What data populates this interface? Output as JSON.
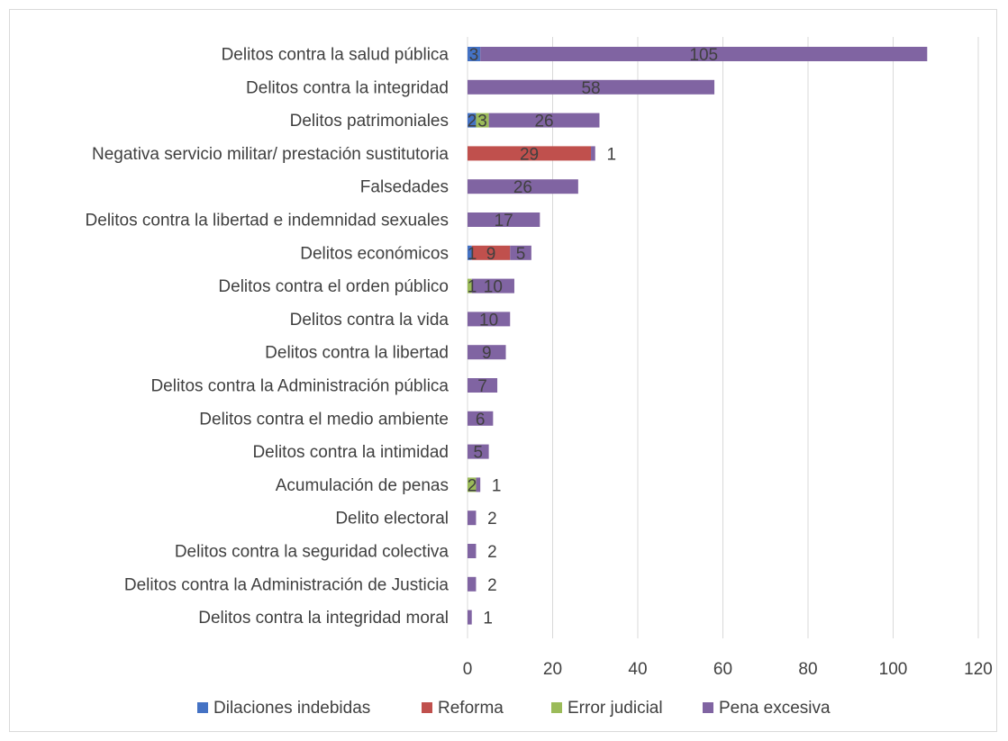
{
  "chart_data": {
    "type": "bar",
    "orientation": "horizontal",
    "stacked": true,
    "categories": [
      "Delitos contra la salud pública",
      "Delitos contra la integridad",
      "Delitos patrimoniales",
      "Negativa servicio militar/ prestación sustitutoria",
      "Falsedades",
      "Delitos contra la libertad e indemnidad sexuales",
      "Delitos económicos",
      "Delitos contra el orden público",
      "Delitos contra la vida",
      "Delitos contra la libertad",
      "Delitos contra la Administración pública",
      "Delitos contra el medio ambiente",
      "Delitos contra la intimidad",
      "Acumulación de penas",
      "Delito electoral",
      "Delitos contra la seguridad colectiva",
      "Delitos contra la Administración de Justicia",
      "Delitos contra la integridad moral"
    ],
    "series": [
      {
        "name": "Dilaciones indebidas",
        "color": "#4472c4",
        "values": [
          3,
          0,
          2,
          0,
          0,
          0,
          1,
          0,
          0,
          0,
          0,
          0,
          0,
          0,
          0,
          0,
          0,
          0
        ]
      },
      {
        "name": "Reforma",
        "color": "#c0504d",
        "values": [
          0,
          0,
          0,
          29,
          0,
          0,
          9,
          0,
          0,
          0,
          0,
          0,
          0,
          0,
          0,
          0,
          0,
          0
        ]
      },
      {
        "name": "Error judicial",
        "color": "#9bbb59",
        "values": [
          0,
          0,
          3,
          0,
          0,
          0,
          0,
          1,
          0,
          0,
          0,
          0,
          0,
          2,
          0,
          0,
          0,
          0
        ]
      },
      {
        "name": "Pena excesiva",
        "color": "#8064a2",
        "values": [
          105,
          58,
          26,
          1,
          26,
          17,
          5,
          10,
          10,
          9,
          7,
          6,
          5,
          1,
          2,
          2,
          2,
          1
        ]
      }
    ],
    "xlim": [
      0,
      120
    ],
    "xticks": [
      0,
      20,
      40,
      60,
      80,
      100,
      120
    ],
    "grid": true,
    "legend_position": "bottom",
    "title": "",
    "xlabel": "",
    "ylabel": ""
  }
}
